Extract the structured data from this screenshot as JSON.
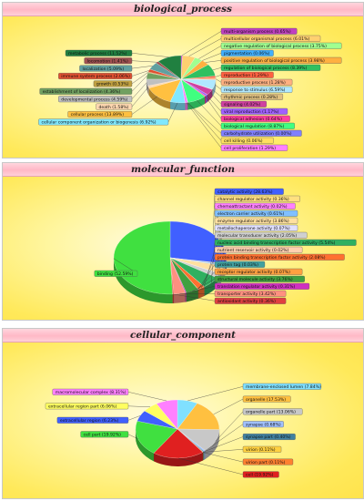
{
  "chart_data": [
    {
      "type": "pie",
      "title": "biological_process",
      "slices": [
        {
          "label": "multi-organism process",
          "value": 0.65,
          "color": "#c040c0"
        },
        {
          "label": "multicellular organismal process",
          "value": 6.01,
          "color": "#ffd070"
        },
        {
          "label": "negative regulation of biological process",
          "value": 3.75,
          "color": "#a0ff90"
        },
        {
          "label": "pigmentation",
          "value": 0.06,
          "color": "#40b0ff"
        },
        {
          "label": "positive regulation of biological process",
          "value": 3.98,
          "color": "#ffb040"
        },
        {
          "label": "regulation of biological process",
          "value": 8.39,
          "color": "#30c060"
        },
        {
          "label": "reproduction",
          "value": 1.29,
          "color": "#ff6040"
        },
        {
          "label": "reproductive process",
          "value": 1.28,
          "color": "#ffb080"
        },
        {
          "label": "response to stimulus",
          "value": 6.59,
          "color": "#b0e8ff"
        },
        {
          "label": "rhythmic process",
          "value": 0.28,
          "color": "#e0c080"
        },
        {
          "label": "signaling",
          "value": 4.02,
          "color": "#d040a0"
        },
        {
          "label": "viral reproduction",
          "value": 1.17,
          "color": "#a060ff"
        },
        {
          "label": "biological adhesion",
          "value": 0.64,
          "color": "#ff40a0"
        },
        {
          "label": "biological regulation",
          "value": 8.87,
          "color": "#40ff80"
        },
        {
          "label": "carbohydrate utilization",
          "value": 0.0,
          "color": "#8080ff"
        },
        {
          "label": "cell killing",
          "value": 0.06,
          "color": "#ffe060"
        },
        {
          "label": "cell proliferation",
          "value": 1.29,
          "color": "#ff80ff"
        },
        {
          "label": "cellular component organization or biogenesis",
          "value": 6.92,
          "color": "#80e8ff"
        },
        {
          "label": "cellular process",
          "value": 13.89,
          "color": "#ffc040"
        },
        {
          "label": "death",
          "value": 1.58,
          "color": "#ffd8b0"
        },
        {
          "label": "developmental process",
          "value": 4.59,
          "color": "#c0c0c0"
        },
        {
          "label": "establishment of localization",
          "value": 4.36,
          "color": "#70a060"
        },
        {
          "label": "growth",
          "value": 0.53,
          "color": "#c0a040"
        },
        {
          "label": "immune system process",
          "value": 2.06,
          "color": "#e05030"
        },
        {
          "label": "localization",
          "value": 5.09,
          "color": "#60a0a0"
        },
        {
          "label": "locomotion",
          "value": 1.41,
          "color": "#a05050"
        },
        {
          "label": "metabolic process",
          "value": 11.52,
          "color": "#208040"
        }
      ],
      "left_labels": [
        "metabolic process",
        "locomotion",
        "localization",
        "immune system process",
        "growth",
        "establishment of localization",
        "developmental process",
        "death",
        "cellular process",
        "cellular component organization or biogenesis"
      ],
      "right_labels": [
        "multi-organism process",
        "multicellular organismal process",
        "negative regulation of biological process",
        "pigmentation",
        "positive regulation of biological process",
        "regulation of biological process",
        "reproduction",
        "reproductive process",
        "response to stimulus",
        "rhythmic process",
        "signaling",
        "viral reproduction",
        "biological adhesion",
        "biological regulation",
        "carbohydrate utilization",
        "cell killing",
        "cell proliferation"
      ]
    },
    {
      "type": "pie",
      "title": "molecular_function",
      "slices": [
        {
          "label": "catalytic activity",
          "value": 28.63,
          "color": "#4060ff"
        },
        {
          "label": "channel regulator activity",
          "value": 0.36,
          "color": "#ffe080"
        },
        {
          "label": "chemoattractant activity",
          "value": 0.02,
          "color": "#ff80ff"
        },
        {
          "label": "electron carrier activity",
          "value": 0.61,
          "color": "#80c0ff"
        },
        {
          "label": "enzyme regulator activity",
          "value": 3.86,
          "color": "#ffe0a0"
        },
        {
          "label": "metallochaperone activity",
          "value": 0.07,
          "color": "#e0e0ff"
        },
        {
          "label": "molecular transducer activity",
          "value": 2.05,
          "color": "#d0d0d0"
        },
        {
          "label": "nucleic acid binding transcription factor activity",
          "value": 5.54,
          "color": "#30b060"
        },
        {
          "label": "nutrient reservoir activity",
          "value": 0.02,
          "color": "#ffd0b0"
        },
        {
          "label": "protein binding transcription factor activity",
          "value": 2.08,
          "color": "#ff7030"
        },
        {
          "label": "protein tag",
          "value": 0.03,
          "color": "#40a0a0"
        },
        {
          "label": "receptor regulator activity",
          "value": 0.07,
          "color": "#ffa040"
        },
        {
          "label": "structural molecule activity",
          "value": 3.76,
          "color": "#40a040"
        },
        {
          "label": "translation regulator activity",
          "value": 0.31,
          "color": "#d030c0"
        },
        {
          "label": "transporter activity",
          "value": 3.42,
          "color": "#ff9080"
        },
        {
          "label": "antioxidant activity",
          "value": 0.36,
          "color": "#e04040"
        },
        {
          "label": "binding",
          "value": 52.59,
          "color": "#40e040"
        }
      ],
      "left_labels": [
        "binding"
      ],
      "right_labels": [
        "catalytic activity",
        "channel regulator activity",
        "chemoattractant activity",
        "electron carrier activity",
        "enzyme regulator activity",
        "metallochaperone activity",
        "molecular transducer activity",
        "nucleic acid binding transcription factor activity",
        "nutrient reservoir activity",
        "protein binding transcription factor activity",
        "protein tag",
        "receptor regulator activity",
        "structural molecule activity",
        "translation regulator activity",
        "transporter activity",
        "antioxidant activity"
      ]
    },
    {
      "type": "pie",
      "title": "cellular_component",
      "slices": [
        {
          "label": "membrane-enclosed lumen",
          "value": 7.84,
          "color": "#80e0ff"
        },
        {
          "label": "organelle",
          "value": 17.53,
          "color": "#ffc040"
        },
        {
          "label": "organelle part",
          "value": 13.06,
          "color": "#c8c8c8"
        },
        {
          "label": "synapse",
          "value": 0.68,
          "color": "#a0c0ff"
        },
        {
          "label": "synapse part",
          "value": 0.4,
          "color": "#4080a0"
        },
        {
          "label": "virion",
          "value": 0.11,
          "color": "#ffd040"
        },
        {
          "label": "virion part",
          "value": 0.11,
          "color": "#ff8030"
        },
        {
          "label": "cell",
          "value": 19.92,
          "color": "#e02020"
        },
        {
          "label": "cell part",
          "value": 19.92,
          "color": "#40e040"
        },
        {
          "label": "extracellular region",
          "value": 6.23,
          "color": "#4060ff"
        },
        {
          "label": "extracellular region part",
          "value": 6.06,
          "color": "#ffff60"
        },
        {
          "label": "macromolecular complex",
          "value": 8.31,
          "color": "#ff80ff"
        }
      ],
      "left_labels": [
        "macromolecular complex",
        "extracellular region part",
        "extracellular region",
        "cell part"
      ],
      "right_labels": [
        "membrane-enclosed lumen",
        "organelle",
        "organelle part",
        "synapse",
        "synapse part",
        "virion",
        "virion part",
        "cell"
      ]
    }
  ]
}
